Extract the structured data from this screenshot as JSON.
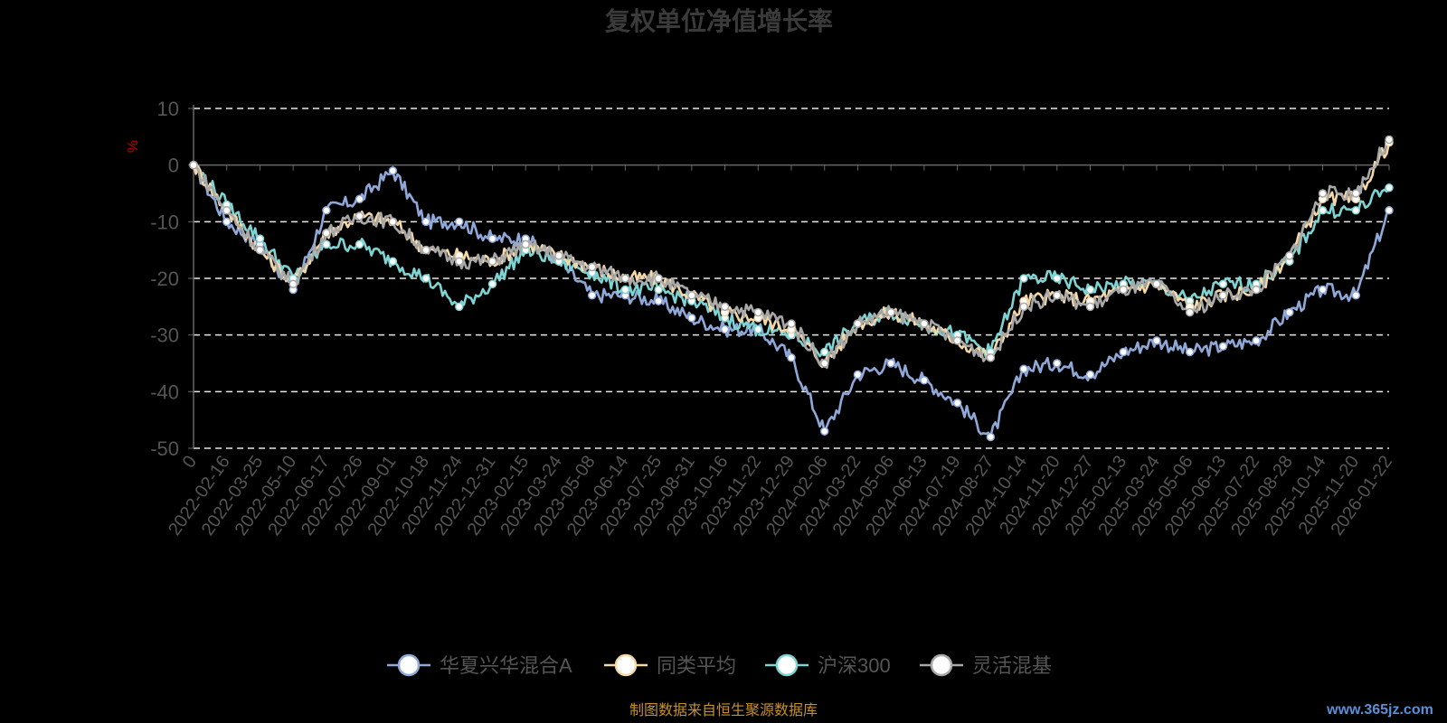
{
  "chart_data": {
    "type": "line",
    "title": "复权单位净值增长率",
    "ylabel": "%",
    "ylim": [
      -50,
      10
    ],
    "yticks": [
      "10",
      "0",
      "-10",
      "-20",
      "-30",
      "-40",
      "-50"
    ],
    "ytick_values": [
      10,
      0,
      -10,
      -20,
      -30,
      -40,
      -50
    ],
    "grid": true,
    "legend_position": "bottom-center",
    "x_categories": [
      "0",
      "2022-02-16",
      "2022-03-25",
      "2022-05-10",
      "2022-06-17",
      "2022-07-26",
      "2022-09-01",
      "2022-10-18",
      "2022-11-24",
      "2022-12-31",
      "2023-02-15",
      "2023-03-24",
      "2023-05-08",
      "2023-06-14",
      "2023-07-25",
      "2023-08-31",
      "2023-10-16",
      "2023-11-22",
      "2023-12-29",
      "2024-02-06",
      "2024-03-22",
      "2024-05-06",
      "2024-06-13",
      "2024-07-19",
      "2024-08-27",
      "2024-10-14",
      "2024-11-20",
      "2024-12-27",
      "2025-02-13",
      "2025-03-24",
      "2025-05-06",
      "2025-06-13",
      "2025-07-22",
      "2025-08-28",
      "2025-10-14",
      "2025-11-20",
      "2026-01-22"
    ],
    "series": [
      {
        "name": "华夏兴华混合A",
        "color": "#8fa8d8",
        "values": [
          0,
          -10,
          -14,
          -22,
          -8,
          -6,
          -1,
          -10,
          -10,
          -13,
          -13,
          -17,
          -23,
          -23,
          -24,
          -27,
          -29,
          -29,
          -34,
          -47,
          -37,
          -35,
          -38,
          -42,
          -48,
          -36,
          -35,
          -37,
          -33,
          -31,
          -33,
          -32,
          -31,
          -26,
          -22,
          -23,
          -8
        ]
      },
      {
        "name": "同类平均",
        "color": "#f5d8a8",
        "values": [
          0,
          -8,
          -15,
          -21,
          -12,
          -9,
          -10,
          -15,
          -16,
          -17,
          -14,
          -16,
          -18,
          -20,
          -20,
          -23,
          -26,
          -27,
          -29,
          -35,
          -28,
          -26,
          -28,
          -31,
          -34,
          -24,
          -23,
          -24,
          -22,
          -21,
          -25,
          -23,
          -22,
          -16,
          -6,
          -6,
          4
        ]
      },
      {
        "name": "沪深300",
        "color": "#7ed3d3",
        "values": [
          0,
          -7,
          -13,
          -20,
          -14,
          -14,
          -17,
          -20,
          -25,
          -21,
          -15,
          -17,
          -19,
          -22,
          -22,
          -24,
          -27,
          -29,
          -30,
          -33,
          -28,
          -26,
          -28,
          -30,
          -33,
          -20,
          -20,
          -22,
          -21,
          -21,
          -24,
          -21,
          -21,
          -17,
          -8,
          -8,
          -4
        ]
      },
      {
        "name": "灵活混基",
        "color": "#a8a8a8",
        "values": [
          0,
          -8,
          -15,
          -21,
          -12,
          -9,
          -10,
          -15,
          -17,
          -17,
          -14,
          -16,
          -18,
          -20,
          -20,
          -23,
          -25,
          -26,
          -28,
          -35,
          -28,
          -26,
          -28,
          -31,
          -34,
          -25,
          -23,
          -25,
          -22,
          -21,
          -26,
          -23,
          -22,
          -16,
          -5,
          -5,
          4.5
        ]
      }
    ]
  },
  "source_text": "制图数据来自恒生聚源数据库",
  "watermark_text": "www.365jz.com"
}
